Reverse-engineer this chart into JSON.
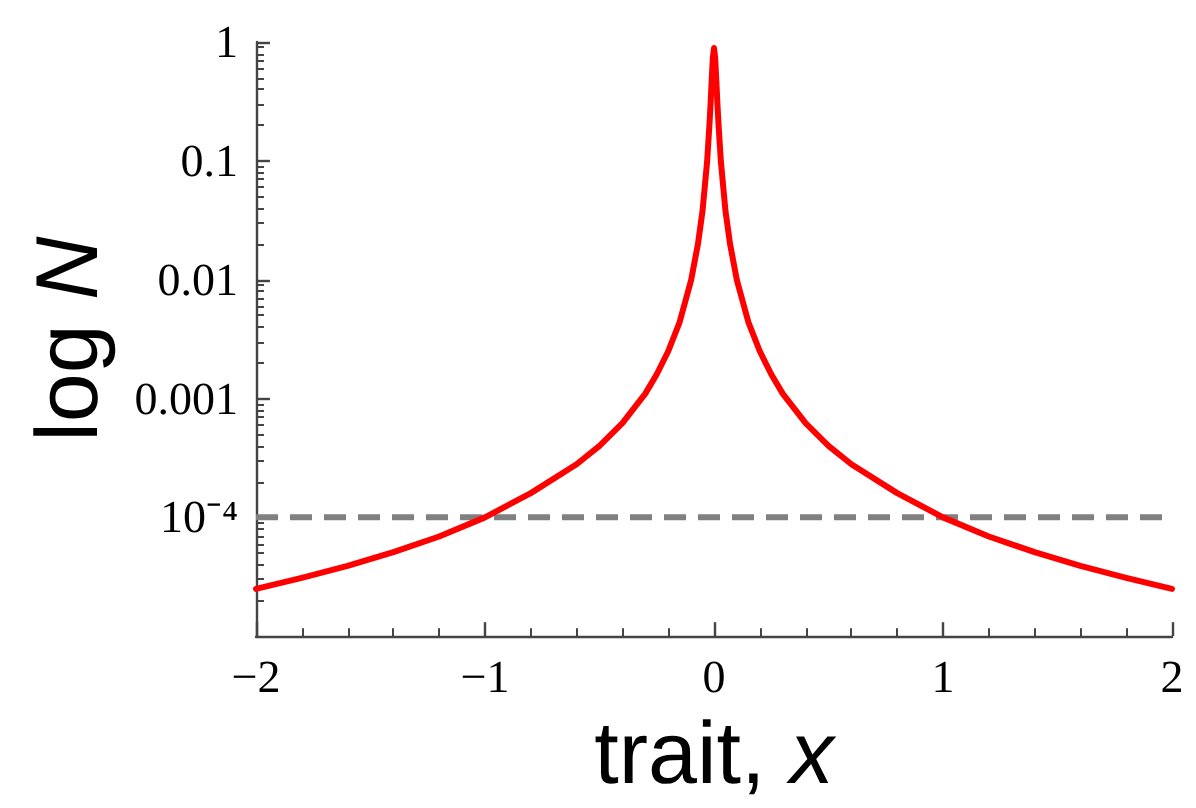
{
  "chart_data": {
    "type": "line",
    "xlabel": "trait, x",
    "ylabel": "log N",
    "x": [
      -2,
      -1.8,
      -1.6,
      -1.4,
      -1.2,
      -1,
      -0.8,
      -0.6,
      -0.5,
      -0.4,
      -0.3,
      -0.25,
      -0.2,
      -0.15,
      -0.1,
      -0.07,
      -0.05,
      -0.03,
      -0.02,
      -0.015,
      -0.01,
      -0.005,
      0,
      0.005,
      0.01,
      0.015,
      0.02,
      0.03,
      0.05,
      0.07,
      0.1,
      0.15,
      0.2,
      0.25,
      0.3,
      0.4,
      0.5,
      0.6,
      0.8,
      1,
      1.2,
      1.4,
      1.6,
      1.8,
      2
    ],
    "series": [
      {
        "color": "#ff0000",
        "values": [
          2.5e-05,
          3.1e-05,
          3.9e-05,
          5.1e-05,
          6.9e-05,
          0.0001,
          0.00016,
          0.00028,
          0.0004,
          0.00062,
          0.0011,
          0.0016,
          0.0025,
          0.0044,
          0.0099,
          0.02,
          0.038,
          0.099,
          0.2,
          0.3,
          0.48,
          0.74,
          0.89,
          0.74,
          0.48,
          0.3,
          0.2,
          0.099,
          0.038,
          0.02,
          0.0099,
          0.0044,
          0.0025,
          0.0016,
          0.0011,
          0.00062,
          0.0004,
          0.00028,
          0.00016,
          0.0001,
          6.9e-05,
          5.1e-05,
          3.9e-05,
          3.1e-05,
          2.5e-05
        ]
      }
    ],
    "xlim": [
      -2,
      2
    ],
    "xticks": [
      {
        "value": -2,
        "label": "−2"
      },
      {
        "value": -1.8,
        "label": null
      },
      {
        "value": -1.6,
        "label": null
      },
      {
        "value": -1.4,
        "label": null
      },
      {
        "value": -1.2,
        "label": null
      },
      {
        "value": -1,
        "label": "−1"
      },
      {
        "value": -0.8,
        "label": null
      },
      {
        "value": -0.6,
        "label": null
      },
      {
        "value": -0.4,
        "label": null
      },
      {
        "value": -0.2,
        "label": null
      },
      0,
      {
        "value": 0.2,
        "label": null
      },
      {
        "value": 0.4,
        "label": null
      },
      {
        "value": 0.6,
        "label": null
      },
      {
        "value": 0.8,
        "label": null
      },
      1,
      {
        "value": 1.2,
        "label": null
      },
      {
        "value": 1.4,
        "label": null
      },
      {
        "value": 1.6,
        "label": null
      },
      {
        "value": 1.8,
        "label": null
      },
      2
    ],
    "ylim": [
      1e-05,
      1
    ],
    "yticks": [
      {
        "value": 2e-05,
        "label": null
      },
      {
        "value": 3e-05,
        "label": null
      },
      {
        "value": 4e-05,
        "label": null
      },
      {
        "value": 5e-05,
        "label": null
      },
      {
        "value": 6e-05,
        "label": null
      },
      {
        "value": 7e-05,
        "label": null
      },
      {
        "value": 8e-05,
        "label": null
      },
      {
        "value": 9e-05,
        "label": null
      },
      {
        "value": 0.0001,
        "label": "10⁻⁴"
      },
      {
        "value": 0.0002,
        "label": null
      },
      {
        "value": 0.0003,
        "label": null
      },
      {
        "value": 0.0004,
        "label": null
      },
      {
        "value": 0.0005,
        "label": null
      },
      {
        "value": 0.0006,
        "label": null
      },
      {
        "value": 0.0007,
        "label": null
      },
      {
        "value": 0.0008,
        "label": null
      },
      {
        "value": 0.0009,
        "label": null
      },
      0.001,
      {
        "value": 0.002,
        "label": null
      },
      {
        "value": 0.003,
        "label": null
      },
      {
        "value": 0.004,
        "label": null
      },
      {
        "value": 0.005,
        "label": null
      },
      {
        "value": 0.006,
        "label": null
      },
      {
        "value": 0.007,
        "label": null
      },
      {
        "value": 0.008,
        "label": null
      },
      {
        "value": 0.009,
        "label": null
      },
      0.01,
      {
        "value": 0.02,
        "label": null
      },
      {
        "value": 0.03,
        "label": null
      },
      {
        "value": 0.04,
        "label": null
      },
      {
        "value": 0.05,
        "label": null
      },
      {
        "value": 0.06,
        "label": null
      },
      {
        "value": 0.07,
        "label": null
      },
      {
        "value": 0.08,
        "label": null
      },
      {
        "value": 0.09,
        "label": null
      },
      0.1,
      {
        "value": 0.2,
        "label": null
      },
      {
        "value": 0.3,
        "label": null
      },
      {
        "value": 0.4,
        "label": null
      },
      {
        "value": 0.5,
        "label": null
      },
      {
        "value": 0.6,
        "label": null
      },
      {
        "value": 0.7,
        "label": null
      },
      {
        "value": 0.8,
        "label": null
      },
      {
        "value": 0.9,
        "label": null
      },
      1
    ],
    "log": "y",
    "ref_lines": [
      {
        "axis": "y",
        "value": 0.0001,
        "color": "#808080",
        "line_style": "dashed"
      }
    ],
    "grid": false,
    "marker": "none",
    "line_style": "solid"
  }
}
